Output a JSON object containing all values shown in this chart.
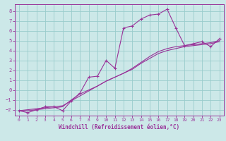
{
  "xlabel": "Windchill (Refroidissement éolien,°C)",
  "ylabel": "",
  "xlim": [
    -0.5,
    23.5
  ],
  "ylim": [
    -2.6,
    8.7
  ],
  "yticks": [
    -2,
    -1,
    0,
    1,
    2,
    3,
    4,
    5,
    6,
    7,
    8
  ],
  "xticks": [
    0,
    1,
    2,
    3,
    4,
    5,
    6,
    7,
    8,
    9,
    10,
    11,
    12,
    13,
    14,
    15,
    16,
    17,
    18,
    19,
    20,
    21,
    22,
    23
  ],
  "background_color": "#cce8e8",
  "grid_color": "#99cccc",
  "line_color": "#993399",
  "series1_x": [
    0,
    1,
    2,
    3,
    4,
    5,
    6,
    7,
    8,
    9,
    10,
    11,
    12,
    13,
    14,
    15,
    16,
    17,
    18,
    19,
    20,
    21,
    22,
    23
  ],
  "series1_y": [
    -2.1,
    -2.3,
    -2.0,
    -1.7,
    -1.7,
    -2.1,
    -1.1,
    -0.3,
    1.3,
    1.4,
    3.0,
    2.2,
    6.3,
    6.5,
    7.2,
    7.6,
    7.7,
    8.2,
    6.3,
    4.5,
    4.7,
    4.9,
    4.4,
    5.2
  ],
  "series2_x": [
    0,
    1,
    2,
    3,
    4,
    5,
    6,
    7,
    8,
    9,
    10,
    11,
    12,
    13,
    14,
    15,
    16,
    17,
    18,
    19,
    20,
    21,
    22,
    23
  ],
  "series2_y": [
    -2.1,
    -2.1,
    -2.0,
    -1.9,
    -1.8,
    -1.7,
    -1.0,
    -0.4,
    0.0,
    0.4,
    0.9,
    1.3,
    1.7,
    2.1,
    2.7,
    3.2,
    3.7,
    4.0,
    4.2,
    4.4,
    4.5,
    4.6,
    4.7,
    4.9
  ],
  "series3_x": [
    0,
    1,
    2,
    3,
    4,
    5,
    6,
    7,
    8,
    9,
    10,
    11,
    12,
    13,
    14,
    15,
    16,
    17,
    18,
    19,
    20,
    21,
    22,
    23
  ],
  "series3_y": [
    -2.1,
    -2.0,
    -1.9,
    -1.8,
    -1.7,
    -1.6,
    -1.1,
    -0.6,
    -0.1,
    0.4,
    0.9,
    1.3,
    1.7,
    2.2,
    2.8,
    3.4,
    3.9,
    4.2,
    4.4,
    4.5,
    4.6,
    4.7,
    4.8,
    5.0
  ]
}
